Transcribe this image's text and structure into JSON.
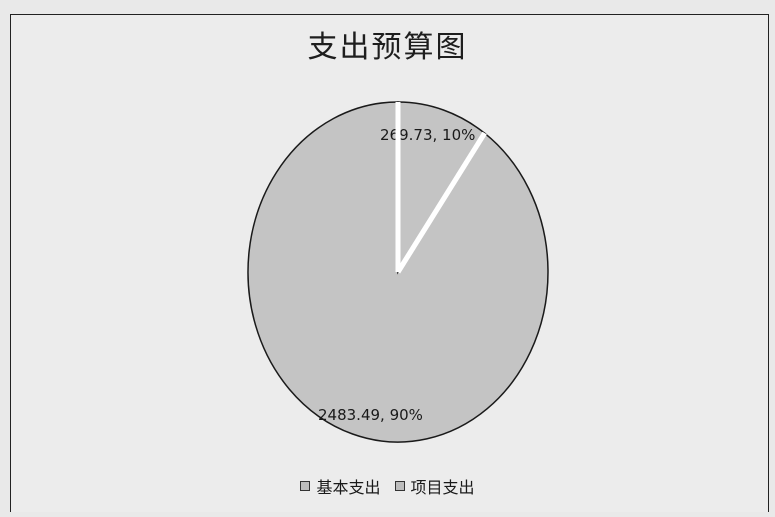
{
  "chart_data": {
    "type": "pie",
    "title": "支出预算图",
    "categories": [
      "基本支出",
      "项目支出"
    ],
    "values": [
      2483.49,
      269.73
    ],
    "percent_labels": [
      "90%",
      "10%"
    ],
    "data_labels": [
      "2483.49, 90%",
      "269.73, 10%"
    ],
    "legend_position": "bottom",
    "colors": {
      "slice_fill": "#c4c4c4",
      "slice_edge": "#1a1a1a",
      "separator": "#ffffff"
    }
  }
}
